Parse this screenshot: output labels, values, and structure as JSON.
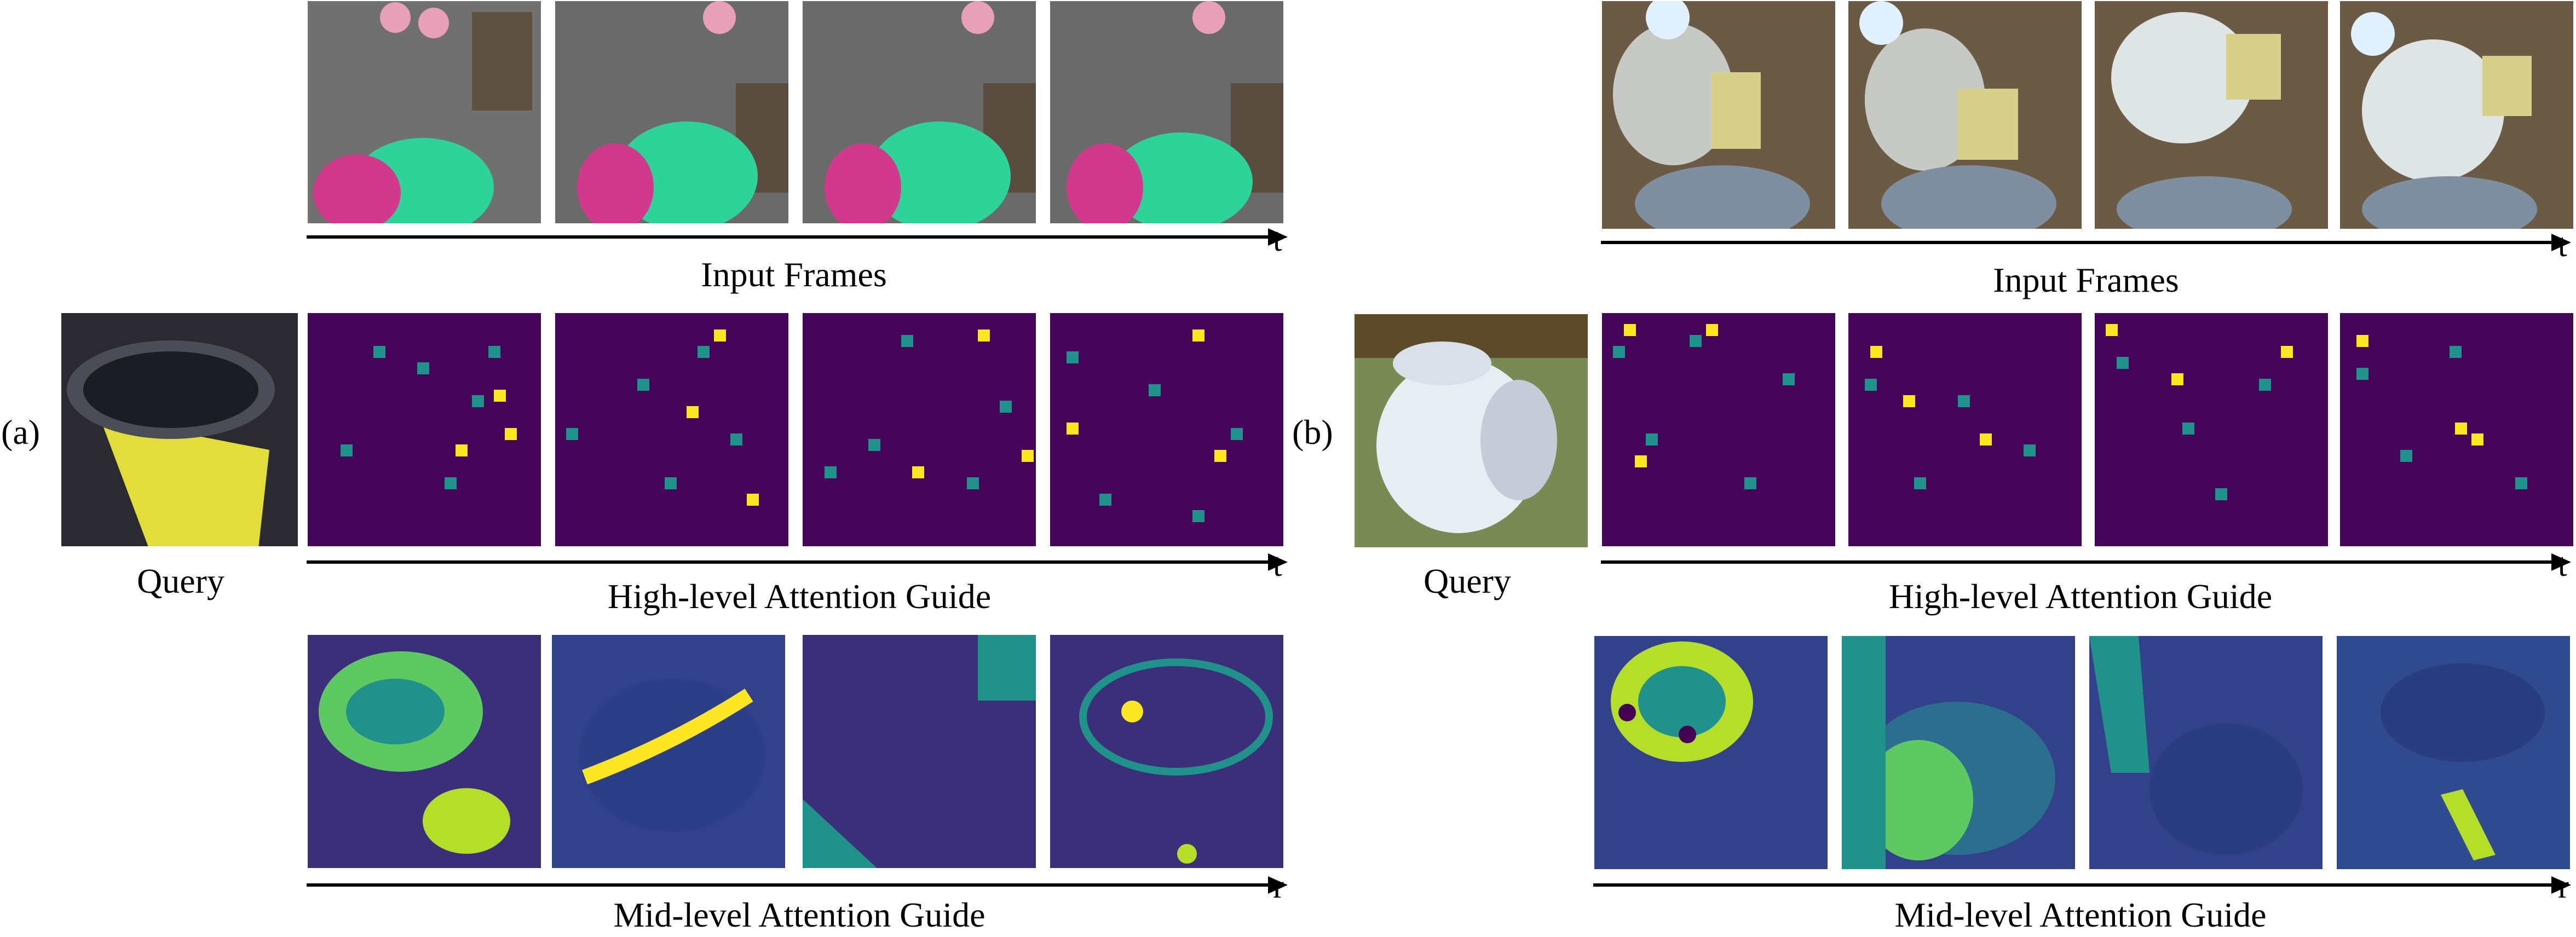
{
  "panel_a": {
    "label": "(a)",
    "query_caption": "Query",
    "rows": {
      "input_frames": {
        "caption": "Input Frames",
        "axis": "t"
      },
      "high_level": {
        "caption": "High-level Attention Guide",
        "axis": "t"
      },
      "mid_level": {
        "caption": "Mid-level Attention Guide",
        "axis": "r"
      }
    }
  },
  "panel_b": {
    "label": "(b)",
    "query_caption": "Query",
    "rows": {
      "input_frames": {
        "caption": "Input Frames",
        "axis": "t"
      },
      "high_level": {
        "caption": "High-level Attention Guide",
        "axis": "t"
      },
      "mid_level": {
        "caption": "Mid-level Attention Guide",
        "axis": "r"
      }
    }
  },
  "colors": {
    "heatmap_background": "#45065a",
    "heatmap_mid": "#21918c",
    "heatmap_high": "#fde725",
    "arrow": "#000000"
  }
}
